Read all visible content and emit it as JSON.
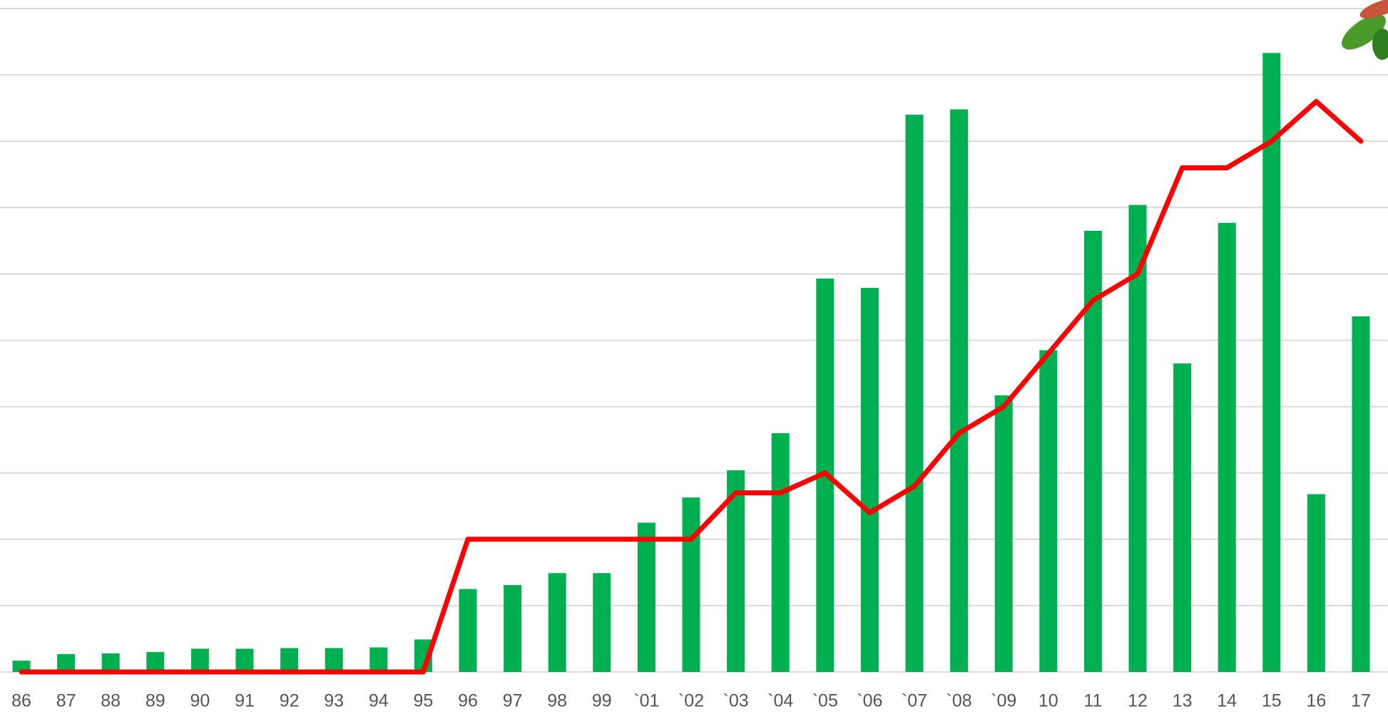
{
  "chart_data": {
    "type": "bar-line",
    "categories": [
      "86",
      "87",
      "88",
      "89",
      "90",
      "91",
      "92",
      "93",
      "94",
      "95",
      "96",
      "97",
      "98",
      "99",
      "`01",
      "`02",
      "`03",
      "`04",
      "`05",
      "`06",
      "`07",
      "`08",
      "`09",
      "10",
      "11",
      "12",
      "13",
      "14",
      "15",
      "16",
      "17"
    ],
    "series": [
      {
        "type": "bar",
        "color": "#00b050",
        "values": [
          0.17,
          0.27,
          0.28,
          0.3,
          0.35,
          0.35,
          0.36,
          0.36,
          0.37,
          0.49,
          1.25,
          1.31,
          1.49,
          1.49,
          2.25,
          2.63,
          3.04,
          3.6,
          5.93,
          5.79,
          8.4,
          8.48,
          4.17,
          4.85,
          6.65,
          7.04,
          4.65,
          6.77,
          9.33,
          2.68,
          5.36
        ]
      },
      {
        "type": "line",
        "color": "#ff0000",
        "values": [
          0,
          0,
          0,
          0,
          0,
          0,
          0,
          0,
          0,
          0,
          2,
          2,
          2,
          2,
          2,
          2,
          2.7,
          2.7,
          3,
          2.4,
          2.8,
          3.6,
          4,
          4.8,
          5.6,
          6,
          7.6,
          7.6,
          8,
          8.6,
          8
        ]
      }
    ],
    "ylim": [
      0,
      10
    ],
    "yticks": [
      0,
      1,
      2,
      3,
      4,
      5,
      6,
      7,
      8,
      9,
      10
    ],
    "grid": true
  }
}
